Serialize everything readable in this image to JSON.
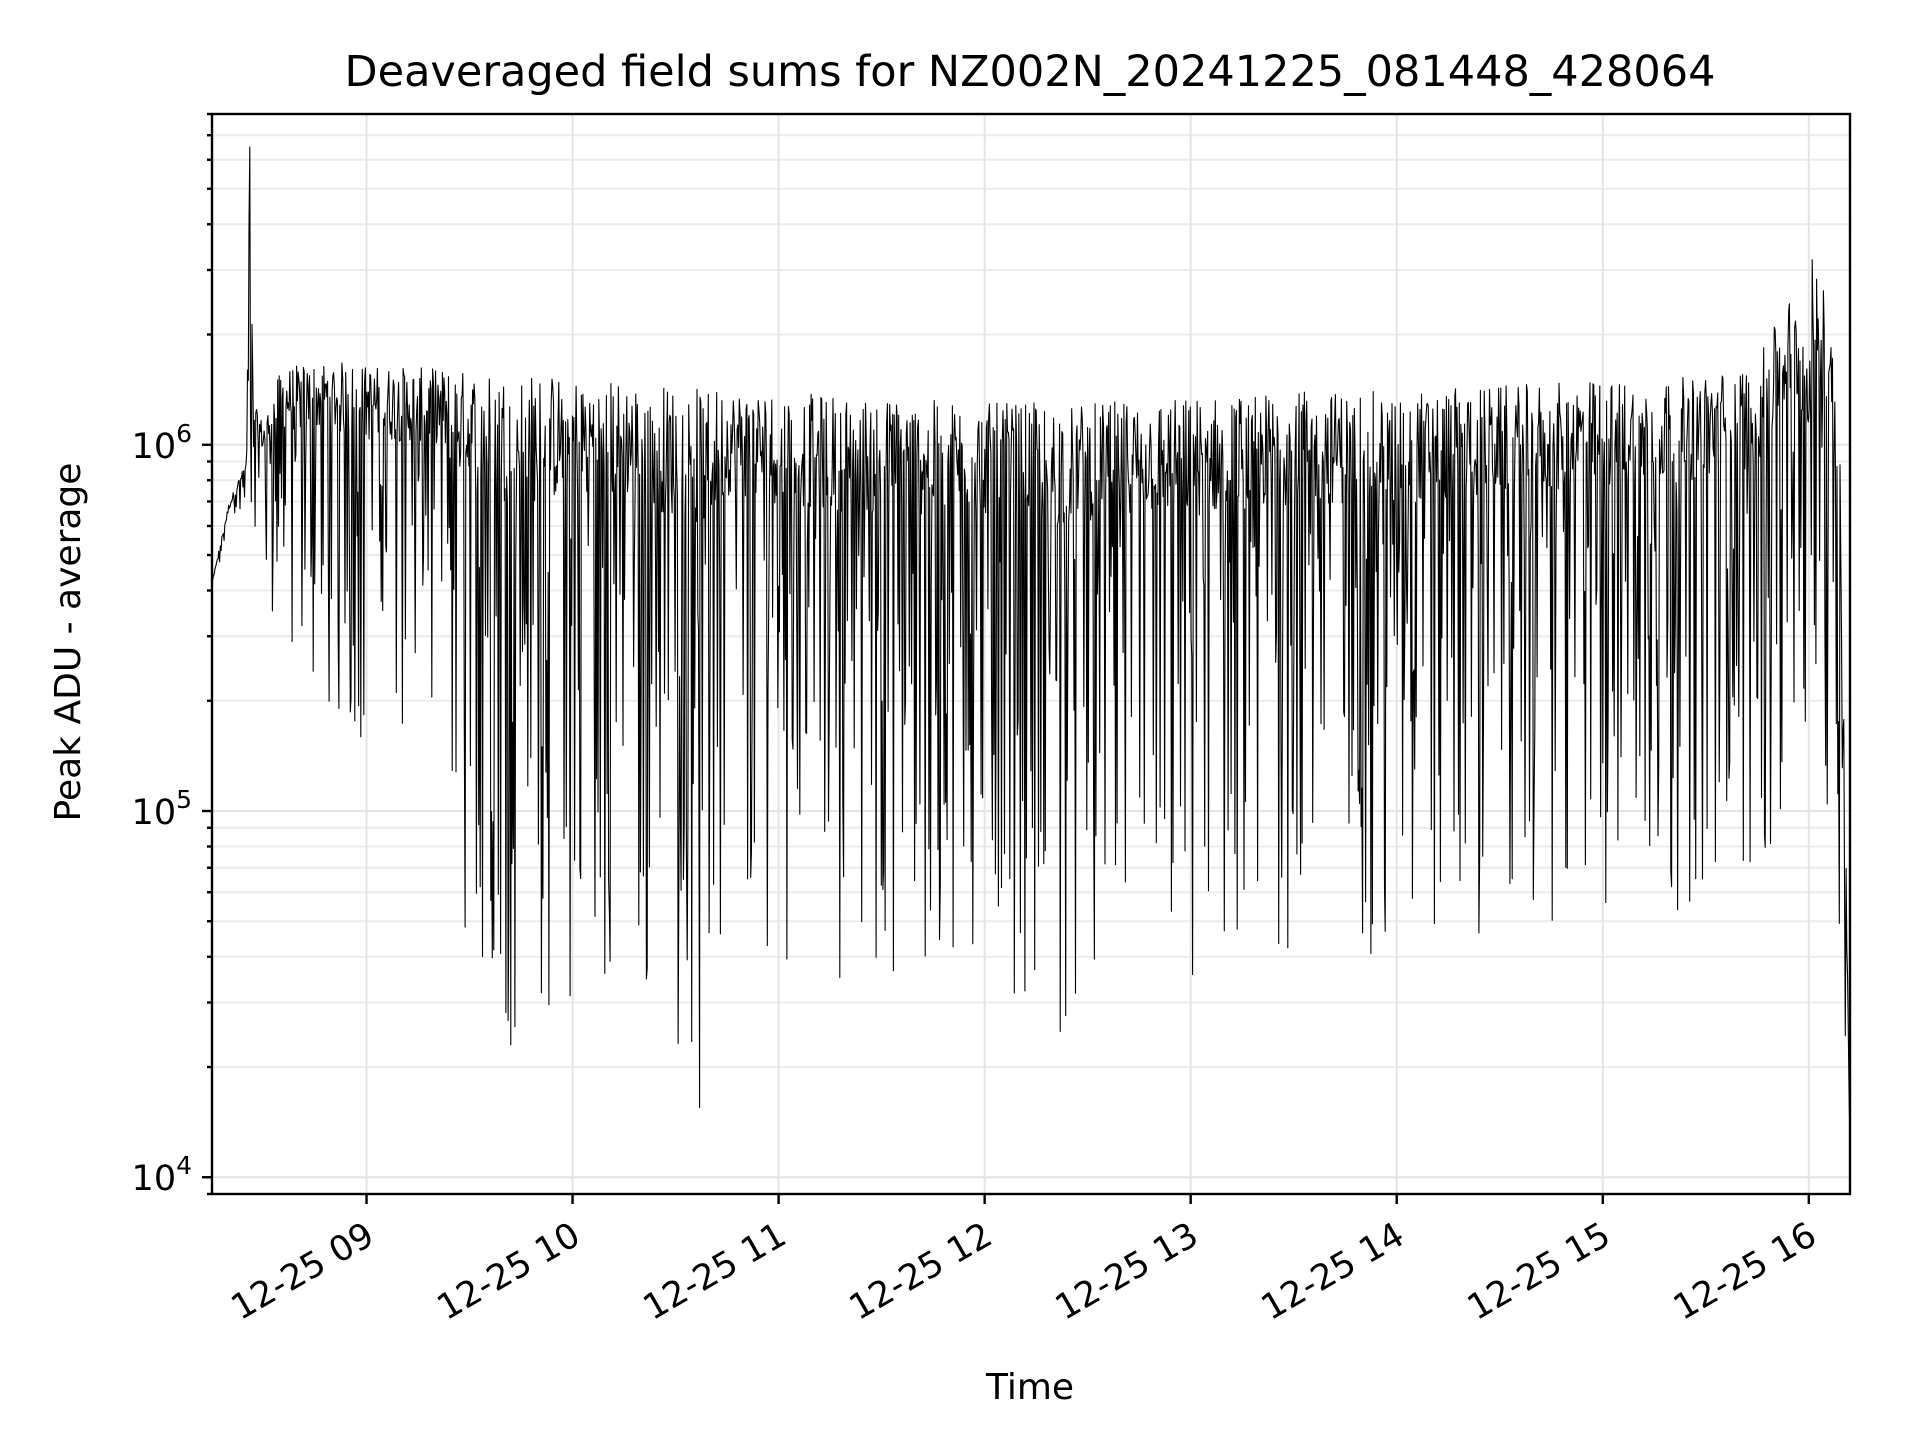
{
  "chart_data": {
    "type": "line",
    "title": "Deaveraged field sums for NZ002N_20241225_081448_428064",
    "xlabel": "Time",
    "ylabel": "Peak ADU - average",
    "yscale": "log",
    "grid": true,
    "grid_which": "both",
    "line_color": "#000000",
    "xlim": [
      "12-25 08:15",
      "12-25 16:12"
    ],
    "ylim": [
      9000,
      8000000
    ],
    "x_ticks": [
      "12-25 09",
      "12-25 10",
      "12-25 11",
      "12-25 12",
      "12-25 13",
      "12-25 14",
      "12-25 15",
      "12-25 16"
    ],
    "y_ticks": [
      {
        "value": 10000,
        "base": "10",
        "exp": "4"
      },
      {
        "value": 100000,
        "base": "10",
        "exp": "5"
      },
      {
        "value": 1000000,
        "base": "10",
        "exp": "6"
      }
    ],
    "series": [
      {
        "upper_envelope": {
          "x": [
            "12-25 08:15",
            "12-25 08:20",
            "12-25 08:25",
            "12-25 08:26",
            "12-25 08:27",
            "12-25 08:30",
            "12-25 08:35",
            "12-25 08:40",
            "12-25 08:50",
            "12-25 09:00",
            "12-25 09:30",
            "12-25 10:00",
            "12-25 10:30",
            "12-25 11:00",
            "12-25 11:30",
            "12-25 12:00",
            "12-25 12:30",
            "12-25 13:00",
            "12-25 13:30",
            "12-25 14:00",
            "12-25 14:30",
            "12-25 15:00",
            "12-25 15:30",
            "12-25 15:45",
            "12-25 15:55",
            "12-25 16:00",
            "12-25 16:03",
            "12-25 16:06",
            "12-25 16:09",
            "12-25 16:12"
          ],
          "y": [
            420000,
            700000,
            900000,
            6500000,
            1300000,
            1150000,
            1600000,
            1650000,
            1700000,
            1650000,
            1600000,
            1550000,
            1450000,
            1400000,
            1350000,
            1300000,
            1300000,
            1350000,
            1400000,
            1400000,
            1450000,
            1500000,
            1550000,
            1700000,
            2600000,
            2000000,
            3200000,
            2800000,
            1200000,
            12500
          ]
        },
        "lower_envelope": {
          "x": [
            "12-25 08:15",
            "12-25 08:25",
            "12-25 08:35",
            "12-25 08:40",
            "12-25 09:00",
            "12-25 09:20",
            "12-25 09:30",
            "12-25 09:40",
            "12-25 10:00",
            "12-25 10:20",
            "12-25 10:38",
            "12-25 10:45",
            "12-25 11:00",
            "12-25 11:30",
            "12-25 12:00",
            "12-25 12:20",
            "12-25 12:40",
            "12-25 13:00",
            "12-25 13:30",
            "12-25 14:00",
            "12-25 14:30",
            "12-25 15:00",
            "12-25 15:30",
            "12-25 15:45",
            "12-25 16:00",
            "12-25 16:05",
            "12-25 16:10",
            "12-25 16:12"
          ],
          "y": [
            420000,
            700000,
            260000,
            200000,
            150000,
            160000,
            33000,
            24000,
            30000,
            34000,
            15500,
            50000,
            40000,
            32000,
            38000,
            25000,
            40000,
            30000,
            40000,
            40000,
            45000,
            50000,
            55000,
            60000,
            110000,
            55000,
            20000,
            12500
          ]
        },
        "notable_points": [
          {
            "x": "12-25 08:26",
            "y": 6500000,
            "note": "spike"
          },
          {
            "x": "12-25 09:42",
            "y": 23000,
            "note": "dip"
          },
          {
            "x": "12-25 10:37",
            "y": 15500,
            "note": "minimum"
          },
          {
            "x": "12-25 12:22",
            "y": 25000,
            "note": "dip"
          },
          {
            "x": "12-25 16:01",
            "y": 3200000,
            "note": "late peak"
          },
          {
            "x": "12-25 16:12",
            "y": 12500,
            "note": "end"
          }
        ]
      }
    ]
  }
}
